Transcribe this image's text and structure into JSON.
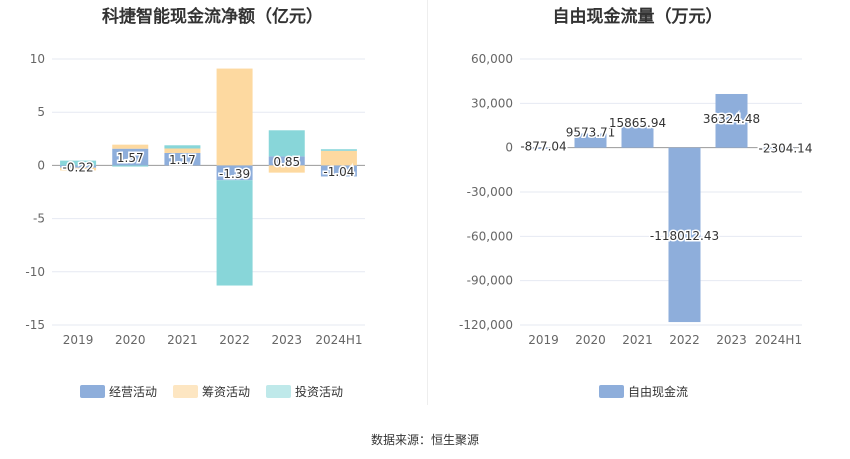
{
  "chart_data": [
    {
      "type": "bar",
      "title": "科捷智能现金流净额（亿元）",
      "categories": [
        "2019",
        "2020",
        "2021",
        "2022",
        "2023",
        "2024H1"
      ],
      "ylim": [
        -15,
        10
      ],
      "yticks": [
        "10",
        "5",
        "0",
        "-5",
        "-10",
        "-15"
      ],
      "stacked": true,
      "series": [
        {
          "name": "经营活动",
          "color": "#8eaedb",
          "values": [
            -0.22,
            1.57,
            1.17,
            -1.39,
            0.85,
            -1.04
          ]
        },
        {
          "name": "筹资活动",
          "color": "#fdd9a0",
          "values": [
            -0.25,
            0.38,
            0.42,
            9.1,
            -0.68,
            1.37
          ]
        },
        {
          "name": "投资活动",
          "color": "#88d6d9",
          "values": [
            0.45,
            -0.11,
            0.3,
            -9.9,
            2.45,
            0.15
          ]
        }
      ],
      "labels": [
        "-0.22",
        "1.57",
        "1.17",
        "-1.39",
        "0.85",
        "-1.04"
      ]
    },
    {
      "type": "bar",
      "title": "自由现金流量（万元）",
      "categories": [
        "2019",
        "2020",
        "2021",
        "2022",
        "2023",
        "2024H1"
      ],
      "ylim": [
        -120000,
        60000
      ],
      "yticks": [
        "60,000",
        "30,000",
        "0",
        "-30,000",
        "-60,000",
        "-90,000",
        "-120,000"
      ],
      "series": [
        {
          "name": "自由现金流",
          "color": "#8eaedb",
          "values": [
            -877.04,
            9573.71,
            15865.94,
            -118012.43,
            36324.48,
            -2304.14
          ]
        }
      ],
      "labels": [
        "-877.04",
        "9573.71",
        "15865.94",
        "-118012.43",
        "36324.48",
        "-2304.14"
      ]
    }
  ],
  "source": "数据来源：恒生聚源"
}
